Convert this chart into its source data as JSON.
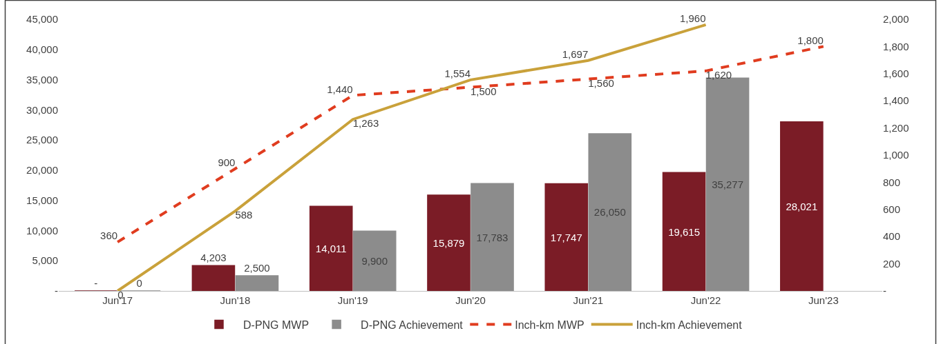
{
  "chart_data": {
    "type": "bar",
    "categories": [
      "Jun'17",
      "Jun'18",
      "Jun'19",
      "Jun'20",
      "Jun'21",
      "Jun'22",
      "Jun'23"
    ],
    "series": [
      {
        "name": "D-PNG MWP",
        "color": "#7b1c26",
        "values": [
          0,
          4203,
          14011,
          15879,
          17747,
          19615,
          28021
        ],
        "value_labels": [
          "-",
          "4,203",
          "14,011",
          "15,879",
          "17,747",
          "19,615",
          "28,021"
        ]
      },
      {
        "name": "D-PNG Achievement",
        "color": "#8c8c8c",
        "values": [
          0,
          2500,
          9900,
          17783,
          26050,
          35277,
          null
        ],
        "value_labels": [
          "0",
          "2,500",
          "9,900",
          "17,783",
          "26,050",
          "35,277",
          null
        ]
      },
      {
        "name": "Inch-km MWP",
        "type": "line",
        "axis": "y2",
        "color": "#e03c1f",
        "line_style": "dashed",
        "values": [
          360,
          900,
          1440,
          1500,
          1560,
          1620,
          1800
        ],
        "value_labels": [
          "360",
          "900",
          "1,440",
          "1,500",
          "1,560",
          "1,620",
          "1,800"
        ]
      },
      {
        "name": "Inch-km Achievement",
        "type": "line",
        "axis": "y2",
        "color": "#c9a13a",
        "line_style": "solid",
        "values": [
          0,
          588,
          1263,
          1554,
          1697,
          1960,
          null
        ],
        "value_labels": [
          "0",
          "588",
          "1,263",
          "1,554",
          "1,697",
          "1,960",
          null
        ]
      }
    ],
    "ylim": [
      0,
      45000
    ],
    "yticks": [
      {
        "value": 0,
        "label": "-"
      },
      {
        "value": 5000,
        "label": "5,000"
      },
      {
        "value": 10000,
        "label": "10,000"
      },
      {
        "value": 15000,
        "label": "15,000"
      },
      {
        "value": 20000,
        "label": "20,000"
      },
      {
        "value": 25000,
        "label": "25,000"
      },
      {
        "value": 30000,
        "label": "30,000"
      },
      {
        "value": 35000,
        "label": "35,000"
      },
      {
        "value": 40000,
        "label": "40,000"
      },
      {
        "value": 45000,
        "label": "45,000"
      }
    ],
    "y2lim": [
      0,
      2000
    ],
    "y2ticks": [
      {
        "value": 0,
        "label": "-"
      },
      {
        "value": 200,
        "label": "200"
      },
      {
        "value": 400,
        "label": "400"
      },
      {
        "value": 600,
        "label": "600"
      },
      {
        "value": 800,
        "label": "800"
      },
      {
        "value": 1000,
        "label": "1,000"
      },
      {
        "value": 1200,
        "label": "1,200"
      },
      {
        "value": 1400,
        "label": "1,400"
      },
      {
        "value": 1600,
        "label": "1,600"
      },
      {
        "value": 1800,
        "label": "1,800"
      },
      {
        "value": 2000,
        "label": "2,000"
      }
    ],
    "legend": "bottom",
    "marker": "none"
  }
}
